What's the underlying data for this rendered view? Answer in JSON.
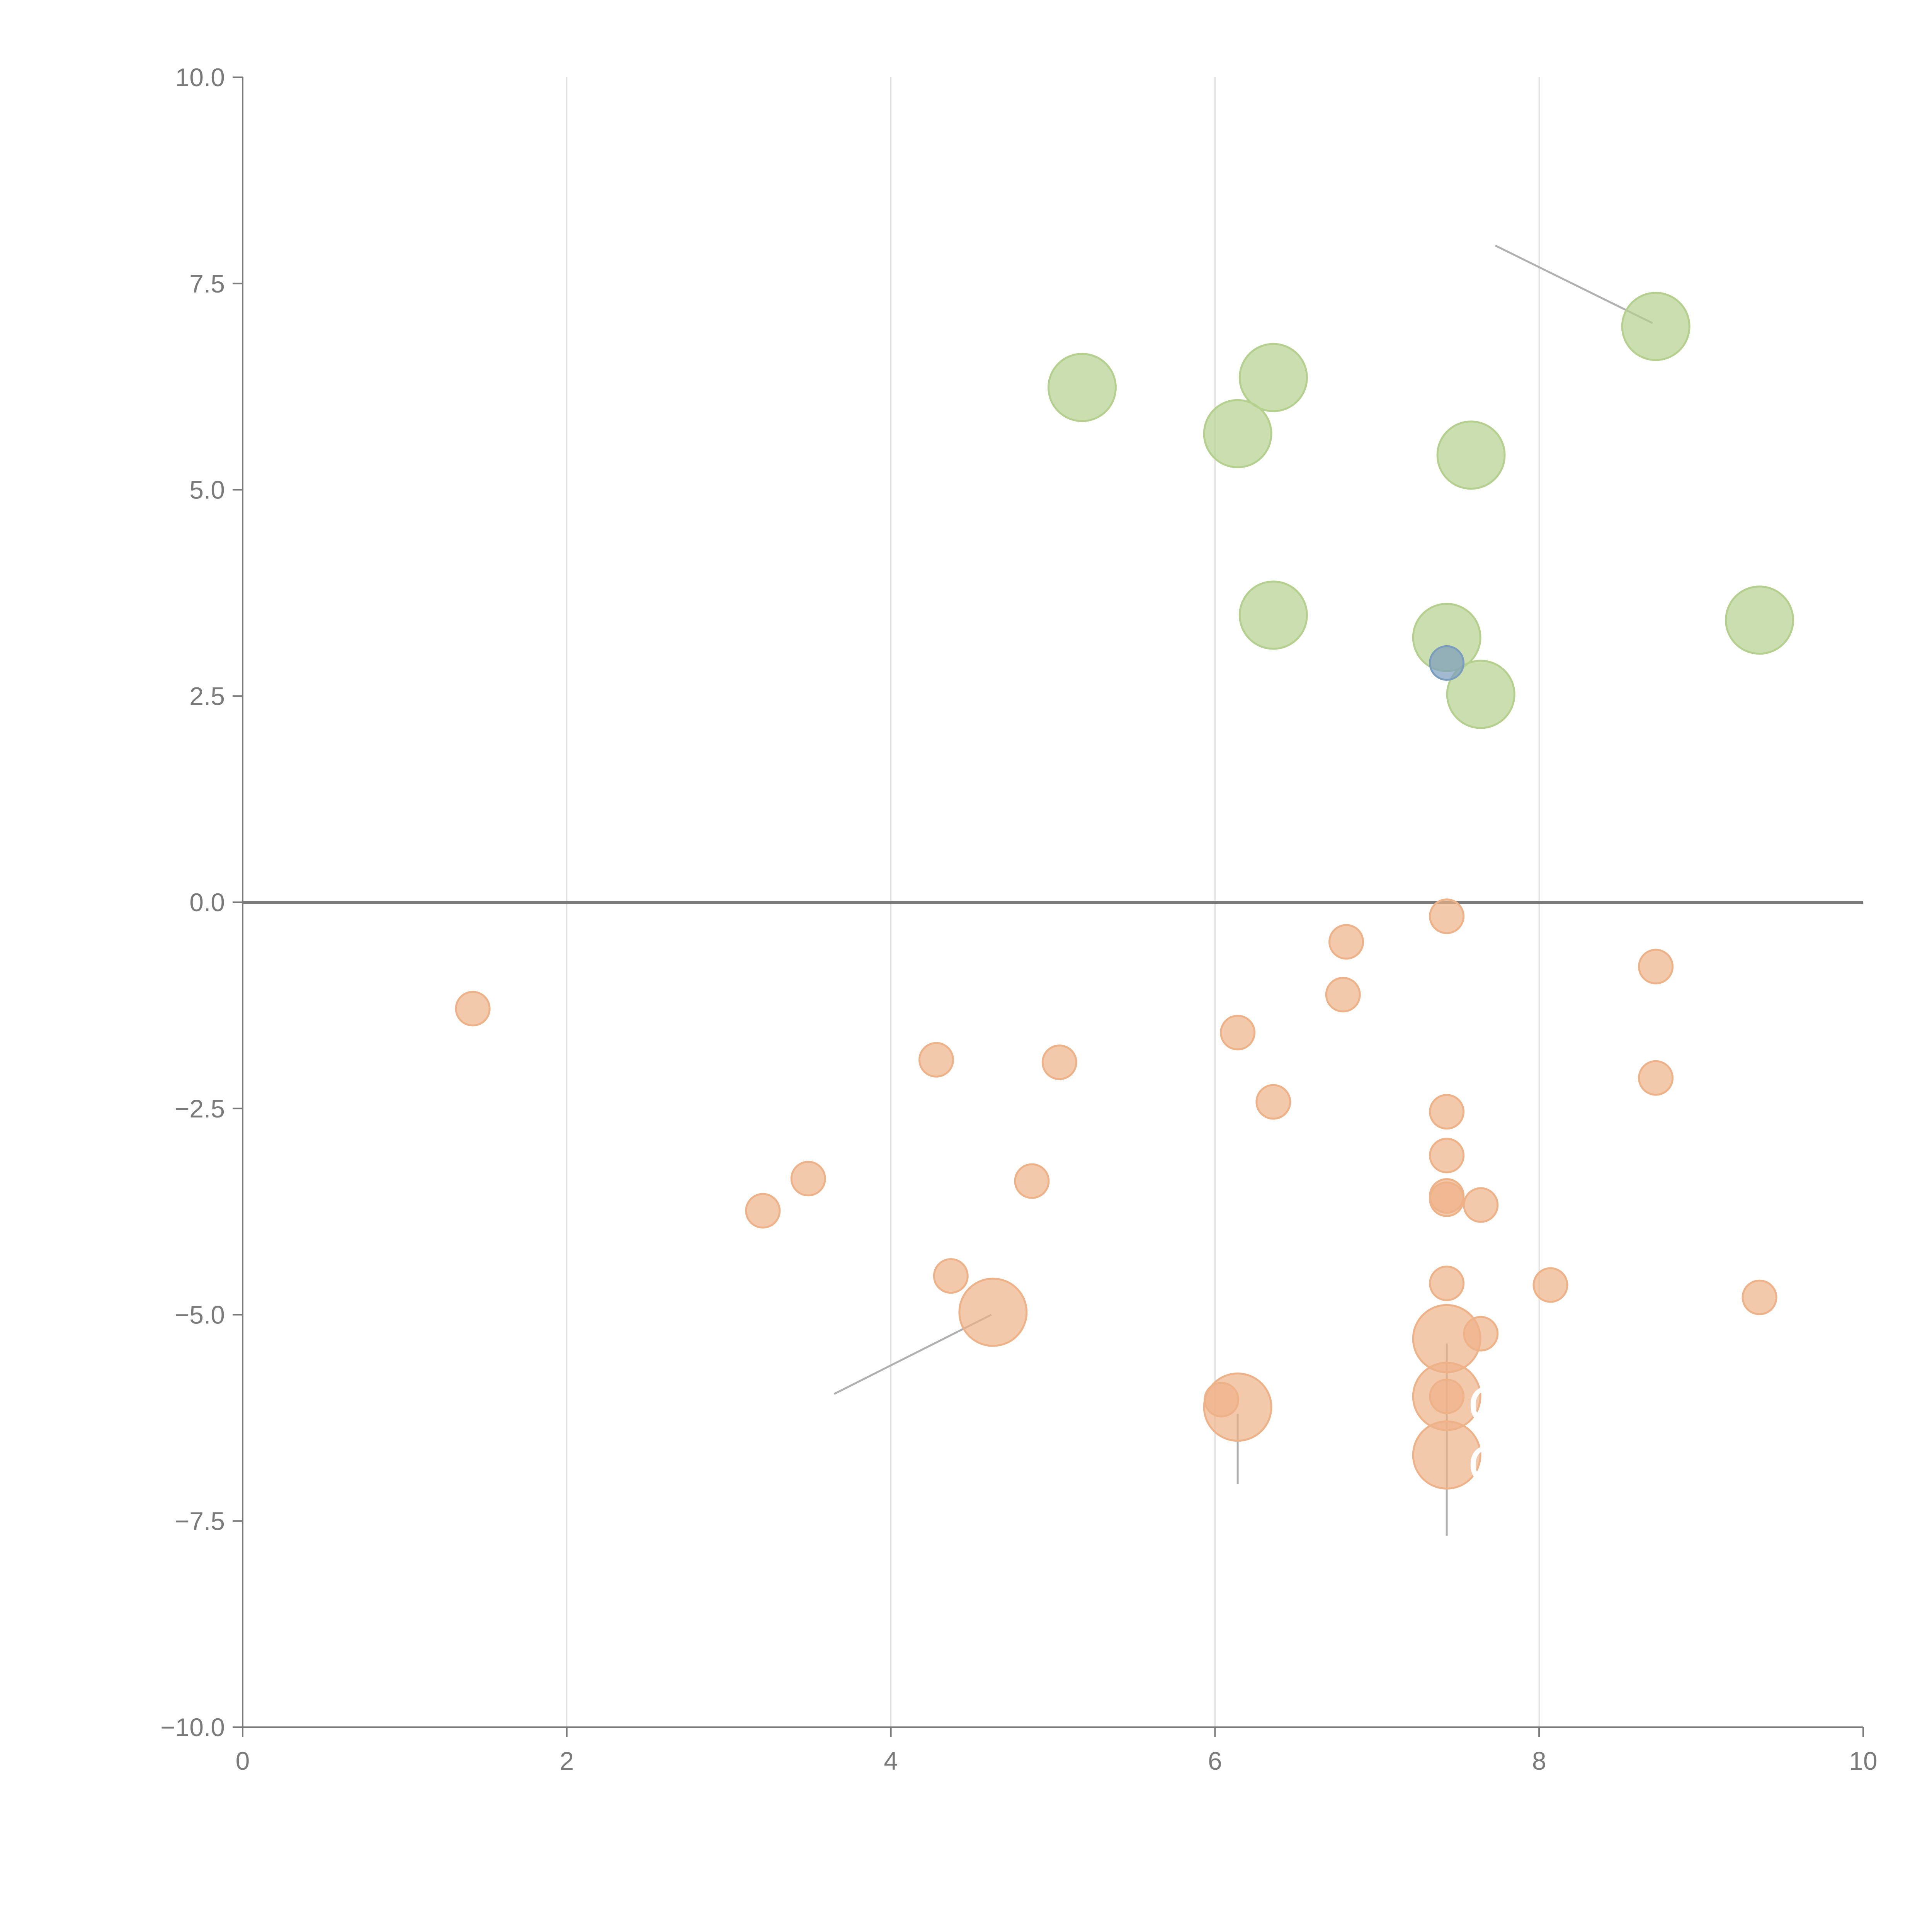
{
  "chart_data": {
    "type": "scatter",
    "title": "",
    "xlabel": "",
    "ylabel": "",
    "xlim": [
      0,
      10
    ],
    "ylim": [
      -10,
      10
    ],
    "x_ticks": [
      0,
      2,
      4,
      6,
      8,
      10
    ],
    "y_ticks": [
      -10,
      -7.5,
      -5,
      -2.5,
      0,
      2.5,
      5,
      7.5,
      10
    ],
    "x_tick_labels": [
      "0",
      "2",
      "4",
      "6",
      "8",
      "10"
    ],
    "y_tick_labels": [
      "−10.0",
      "−7.5",
      "−5.0",
      "−2.5",
      "0.0",
      "2.5",
      "5.0",
      "7.5",
      "10.0"
    ],
    "grid": "vertical",
    "zero_line": true,
    "colors": {
      "green": "#b5d08e",
      "orange": "#eeb289",
      "blue": "#7b9dbd",
      "axis": "#7a7a7a",
      "grid": "#dddddd",
      "leader": "#b0b0b0"
    },
    "series": [
      {
        "name": "green",
        "color": "#b5d08e",
        "points": [
          {
            "x": 5.18,
            "y": 6.24,
            "r": 3
          },
          {
            "x": 6.36,
            "y": 6.36,
            "r": 3
          },
          {
            "x": 6.14,
            "y": 5.68,
            "r": 3
          },
          {
            "x": 7.58,
            "y": 5.42,
            "r": 3
          },
          {
            "x": 8.72,
            "y": 6.98,
            "r": 3
          },
          {
            "x": 6.36,
            "y": 3.48,
            "r": 3
          },
          {
            "x": 7.43,
            "y": 3.21,
            "r": 3
          },
          {
            "x": 7.64,
            "y": 2.52,
            "r": 3
          },
          {
            "x": 9.36,
            "y": 3.42,
            "r": 3
          }
        ]
      },
      {
        "name": "blue",
        "color": "#7b9dbd",
        "points": [
          {
            "x": 7.43,
            "y": 2.9,
            "r": 1.5
          }
        ]
      },
      {
        "name": "orange",
        "color": "#eeb289",
        "points": [
          {
            "x": 1.42,
            "y": -1.29,
            "r": 1.5
          },
          {
            "x": 3.21,
            "y": -3.74,
            "r": 1.5
          },
          {
            "x": 3.49,
            "y": -3.35,
            "r": 1.5
          },
          {
            "x": 4.28,
            "y": -1.91,
            "r": 1.5
          },
          {
            "x": 4.37,
            "y": -4.53,
            "r": 1.5
          },
          {
            "x": 4.87,
            "y": -3.38,
            "r": 1.5
          },
          {
            "x": 5.04,
            "y": -1.94,
            "r": 1.5
          },
          {
            "x": 4.63,
            "y": -4.97,
            "r": 3
          },
          {
            "x": 6.04,
            "y": -6.03,
            "r": 1.5
          },
          {
            "x": 6.14,
            "y": -6.12,
            "r": 3
          },
          {
            "x": 6.14,
            "y": -1.58,
            "r": 1.5
          },
          {
            "x": 6.36,
            "y": -2.42,
            "r": 1.5
          },
          {
            "x": 6.79,
            "y": -1.12,
            "r": 1.5
          },
          {
            "x": 6.81,
            "y": -0.48,
            "r": 1.5
          },
          {
            "x": 7.43,
            "y": -0.17,
            "r": 1.5
          },
          {
            "x": 7.43,
            "y": -2.54,
            "r": 1.5
          },
          {
            "x": 7.43,
            "y": -3.07,
            "r": 1.5
          },
          {
            "x": 7.43,
            "y": -3.56,
            "r": 1.5
          },
          {
            "x": 7.43,
            "y": -3.6,
            "r": 1.5
          },
          {
            "x": 7.64,
            "y": -3.67,
            "r": 1.5
          },
          {
            "x": 7.43,
            "y": -4.62,
            "r": 1.5
          },
          {
            "x": 7.43,
            "y": -5.29,
            "r": 3
          },
          {
            "x": 7.43,
            "y": -5.99,
            "r": 3
          },
          {
            "x": 7.43,
            "y": -5.99,
            "r": 1.5
          },
          {
            "x": 7.43,
            "y": -6.7,
            "r": 3
          },
          {
            "x": 7.64,
            "y": -5.23,
            "r": 1.5
          },
          {
            "x": 8.07,
            "y": -4.64,
            "r": 1.5
          },
          {
            "x": 8.72,
            "y": -0.78,
            "r": 1.5
          },
          {
            "x": 8.72,
            "y": -2.13,
            "r": 1.5
          },
          {
            "x": 9.36,
            "y": -4.79,
            "r": 1.5
          }
        ]
      }
    ],
    "leaders": [
      {
        "x1": 8.7,
        "y1": 7.02,
        "x2": 7.73,
        "y2": 7.96
      },
      {
        "x1": 4.62,
        "y1": -5.0,
        "x2": 3.65,
        "y2": -5.96
      },
      {
        "x1": 6.14,
        "y1": -6.2,
        "x2": 6.14,
        "y2": -7.05
      },
      {
        "x1": 7.43,
        "y1": -5.35,
        "x2": 7.43,
        "y2": -7.68
      }
    ],
    "annotations": [
      {
        "text": "C",
        "x": 7.56,
        "y": -6.1
      },
      {
        "text": "C",
        "x": 7.56,
        "y": -6.82
      }
    ]
  }
}
